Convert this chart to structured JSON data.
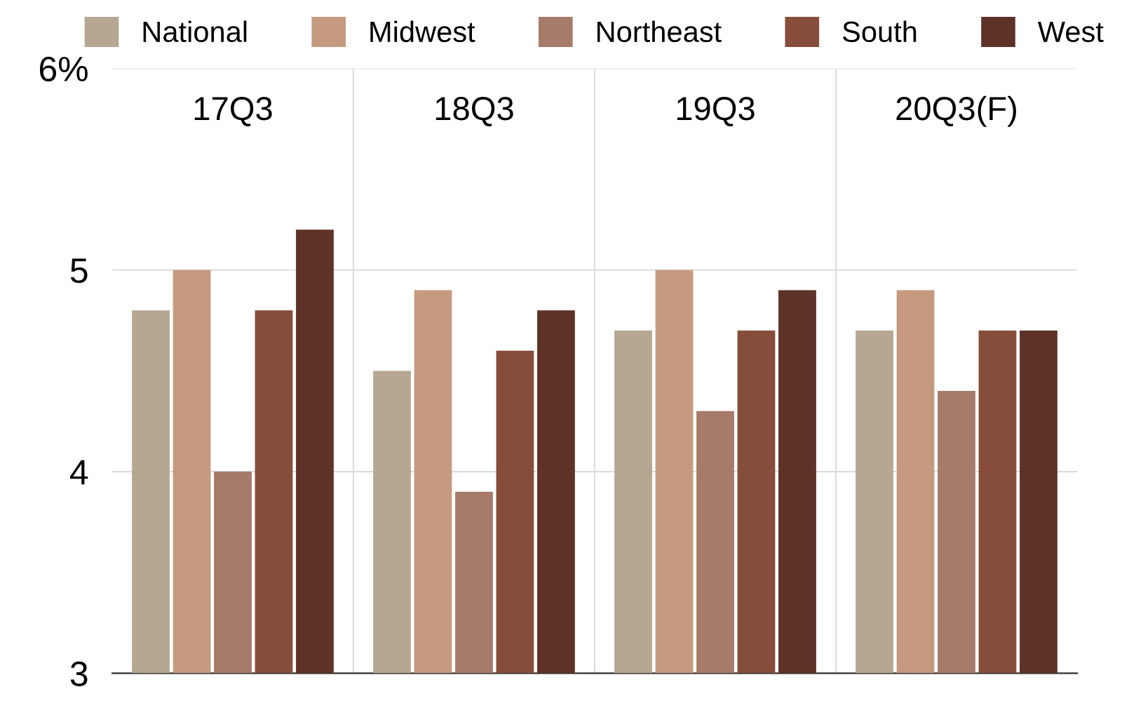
{
  "chart_data": {
    "type": "bar",
    "categories": [
      "17Q3",
      "18Q3",
      "19Q3",
      "20Q3(F)"
    ],
    "series": [
      {
        "name": "National",
        "color": "#b5a792",
        "values": [
          4.8,
          4.5,
          4.7,
          4.7
        ]
      },
      {
        "name": "Midwest",
        "color": "#c59a7f",
        "values": [
          5.0,
          4.9,
          5.0,
          4.9
        ]
      },
      {
        "name": "Northeast",
        "color": "#a67b6a",
        "values": [
          4.0,
          3.9,
          4.3,
          4.4
        ]
      },
      {
        "name": "South",
        "color": "#864d3b",
        "values": [
          4.8,
          4.6,
          4.7,
          4.7
        ]
      },
      {
        "name": "West",
        "color": "#5e3227",
        "values": [
          5.2,
          4.8,
          4.9,
          4.7
        ]
      }
    ],
    "ylim": [
      3,
      6
    ],
    "yticks": [
      3,
      4,
      5,
      {
        "value": 6,
        "label": "6%"
      }
    ],
    "grid": true,
    "legend": "top"
  }
}
